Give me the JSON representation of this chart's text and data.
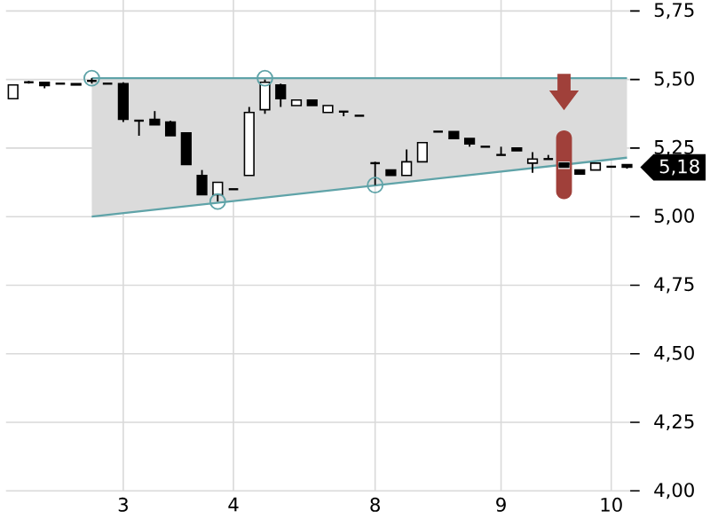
{
  "chart_data": {
    "type": "candlestick",
    "color": "#000000",
    "categories": [
      null,
      null,
      null,
      null,
      null,
      null,
      null,
      "3",
      null,
      null,
      null,
      null,
      null,
      null,
      "4",
      null,
      null,
      null,
      null,
      null,
      null,
      null,
      null,
      "8",
      null,
      null,
      null,
      null,
      null,
      null,
      null,
      "9",
      null,
      null,
      null,
      null,
      null,
      null,
      "10",
      null
    ],
    "ohlc": [
      [
        5.43,
        5.48,
        5.43,
        5.48
      ],
      [
        5.49,
        5.495,
        5.485,
        5.49
      ],
      [
        5.49,
        5.49,
        5.468,
        5.478
      ],
      [
        5.485,
        5.485,
        5.485,
        5.485
      ],
      [
        5.485,
        5.485,
        5.48,
        5.48
      ],
      [
        5.495,
        5.505,
        5.485,
        5.495
      ],
      [
        5.485,
        5.485,
        5.485,
        5.485
      ],
      [
        5.485,
        5.49,
        5.345,
        5.355
      ],
      [
        5.35,
        5.35,
        5.295,
        5.35
      ],
      [
        5.355,
        5.385,
        5.335,
        5.335
      ],
      [
        5.345,
        5.35,
        5.295,
        5.295
      ],
      [
        5.305,
        5.305,
        5.19,
        5.19
      ],
      [
        5.15,
        5.17,
        5.08,
        5.08
      ],
      [
        5.08,
        5.125,
        5.055,
        5.125
      ],
      [
        5.1,
        5.1,
        5.1,
        5.1
      ],
      [
        5.15,
        5.4,
        5.15,
        5.38
      ],
      [
        5.39,
        5.5,
        5.375,
        5.49
      ],
      [
        5.48,
        5.485,
        5.4,
        5.43
      ],
      [
        5.405,
        5.425,
        5.405,
        5.425
      ],
      [
        5.425,
        5.425,
        5.405,
        5.405
      ],
      [
        5.38,
        5.405,
        5.38,
        5.405
      ],
      [
        5.383,
        5.383,
        5.366,
        5.383
      ],
      [
        5.368,
        5.368,
        5.368,
        5.368
      ],
      [
        5.195,
        5.2,
        5.115,
        5.195
      ],
      [
        5.17,
        5.17,
        5.15,
        5.15
      ],
      [
        5.15,
        5.245,
        5.15,
        5.2
      ],
      [
        5.2,
        5.27,
        5.2,
        5.27
      ],
      [
        5.31,
        5.31,
        5.31,
        5.31
      ],
      [
        5.31,
        5.31,
        5.285,
        5.285
      ],
      [
        5.285,
        5.285,
        5.255,
        5.265
      ],
      [
        5.255,
        5.255,
        5.255,
        5.255
      ],
      [
        5.225,
        5.255,
        5.225,
        5.225
      ],
      [
        5.25,
        5.25,
        5.24,
        5.24
      ],
      [
        5.195,
        5.235,
        5.16,
        5.21
      ],
      [
        5.21,
        5.225,
        5.21,
        5.21
      ],
      [
        5.195,
        5.195,
        5.18,
        5.18
      ],
      [
        5.17,
        5.17,
        5.155,
        5.155
      ],
      [
        5.17,
        5.195,
        5.17,
        5.195
      ],
      [
        5.182,
        5.182,
        5.182,
        5.182
      ],
      [
        5.19,
        5.19,
        5.175,
        5.18
      ]
    ],
    "series": [
      {
        "type": "line",
        "color": "#5fa3a8",
        "values": [
          null,
          null,
          null,
          null,
          null,
          5.505,
          null,
          null,
          null,
          null,
          null,
          null,
          null,
          null,
          null,
          null,
          null,
          null,
          null,
          null,
          null,
          null,
          null,
          null,
          null,
          null,
          null,
          null,
          null,
          null,
          null,
          null,
          null,
          null,
          null,
          null,
          null,
          null,
          null,
          5.505
        ],
        "lower": [
          null,
          null,
          null,
          null,
          null,
          5.0,
          null,
          null,
          null,
          null,
          null,
          null,
          null,
          null,
          null,
          null,
          null,
          null,
          null,
          null,
          null,
          null,
          null,
          null,
          null,
          null,
          null,
          null,
          null,
          null,
          null,
          null,
          null,
          null,
          null,
          null,
          null,
          null,
          null,
          5.215
        ],
        "upper": [
          null,
          null,
          null,
          null,
          null,
          5.505,
          null,
          null,
          null,
          null,
          null,
          null,
          null,
          null,
          null,
          null,
          null,
          null,
          null,
          null,
          null,
          null,
          null,
          null,
          null,
          null,
          null,
          null,
          null,
          null,
          null,
          null,
          null,
          null,
          null,
          null,
          null,
          null,
          null,
          5.505
        ]
      },
      {
        "type": "line",
        "color": "#5fa3a8",
        "values": [
          null,
          null,
          null,
          null,
          null,
          5.0,
          null,
          null,
          null,
          null,
          null,
          null,
          null,
          null,
          null,
          null,
          null,
          null,
          null,
          null,
          null,
          null,
          null,
          null,
          null,
          null,
          null,
          null,
          null,
          null,
          null,
          null,
          null,
          null,
          null,
          null,
          null,
          null,
          null,
          5.215
        ]
      },
      {
        "type": "scatter",
        "color": "#5fa3a8",
        "marker": "circle",
        "values": [
          null,
          null,
          null,
          null,
          null,
          5.505,
          null,
          null,
          null,
          null,
          null,
          null,
          null,
          5.055,
          null,
          null,
          5.505,
          null,
          null,
          null,
          null,
          null,
          null,
          5.115,
          null,
          null,
          null,
          null,
          null,
          null,
          null,
          null,
          null,
          null,
          null,
          null,
          null,
          null,
          null,
          null
        ]
      }
    ],
    "ylim": [
      4.0,
      5.79
    ],
    "yticks": [
      {
        "value": 4.0,
        "label": "4,00"
      },
      {
        "value": 4.25,
        "label": "4,25"
      },
      {
        "value": 4.5,
        "label": "4,50"
      },
      {
        "value": 4.75,
        "label": "4,75"
      },
      {
        "value": 5.0,
        "label": "5,00"
      },
      {
        "value": 5.25,
        "label": "5,25"
      },
      {
        "value": 5.5,
        "label": "5,50"
      },
      {
        "value": 5.75,
        "label": "5,75"
      }
    ],
    "grid": true,
    "annotations": [
      "5,18"
    ]
  }
}
